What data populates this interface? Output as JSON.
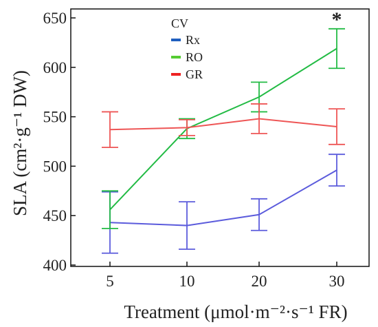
{
  "chart_data": {
    "type": "line",
    "xlabel": "Treatment (μmol·m⁻²·s⁻¹ FR)",
    "ylabel": "SLA (cm²·g⁻¹ DW)",
    "categories": [
      "5",
      "10",
      "20",
      "30"
    ],
    "ylim": [
      400,
      650
    ],
    "yticks": [
      400,
      450,
      500,
      550,
      600,
      650
    ],
    "legend": {
      "title": "CV",
      "placement": "top-center"
    },
    "series": [
      {
        "name": "Rx",
        "color": "#5b5bdc",
        "legend_color": "#1f5fbf",
        "values": [
          443,
          440,
          451,
          496
        ],
        "errors": [
          31,
          24,
          16,
          16
        ]
      },
      {
        "name": "RO",
        "color": "#22bb44",
        "legend_color": "#55cc33",
        "values": [
          456,
          538,
          570,
          619
        ],
        "errors": [
          19,
          10,
          15,
          20
        ]
      },
      {
        "name": "GR",
        "color": "#ee5555",
        "legend_color": "#ee2222",
        "values": [
          537,
          539,
          548,
          540
        ],
        "errors": [
          18,
          8,
          15,
          18
        ]
      }
    ],
    "annotations": [
      {
        "text": "*",
        "category": "30"
      }
    ]
  }
}
